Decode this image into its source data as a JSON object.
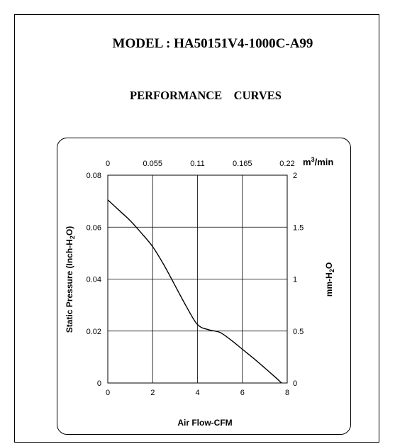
{
  "header": {
    "model": "MODEL : HA50151V4-1000C-A99",
    "subtitle": "PERFORMANCE    CURVES"
  },
  "chart_data": {
    "type": "line",
    "xlabel": "Air Flow-CFM",
    "ylabel": "Static Pressure (Inch-H2O)",
    "x2label": "m³/min",
    "y2label": "mm-H2O",
    "xlim": [
      0,
      8
    ],
    "ylim": [
      0,
      0.08
    ],
    "x2lim": [
      0,
      0.22
    ],
    "y2lim": [
      0,
      2
    ],
    "x_ticks": [
      0,
      2,
      4,
      6,
      8
    ],
    "y_ticks": [
      0,
      0.02,
      0.04,
      0.06,
      0.08
    ],
    "x2_ticks": [
      "0",
      "0.055",
      "0.11",
      "0.165",
      "0.22"
    ],
    "y2_ticks": [
      "0",
      "0.5",
      "1",
      "1.5",
      "2"
    ],
    "grid": true,
    "series": [
      {
        "color": "#000000",
        "x": [
          0,
          0.5,
          1.0,
          1.5,
          2.0,
          2.5,
          3.0,
          3.5,
          4.0,
          4.5,
          5.0,
          5.5,
          6.0,
          6.5,
          7.0,
          7.5,
          7.75
        ],
        "y": [
          0.0705,
          0.0665,
          0.0625,
          0.0577,
          0.0525,
          0.0455,
          0.0375,
          0.0295,
          0.0225,
          0.0205,
          0.0195,
          0.0165,
          0.013,
          0.0095,
          0.0058,
          0.002,
          0.0
        ]
      }
    ]
  }
}
